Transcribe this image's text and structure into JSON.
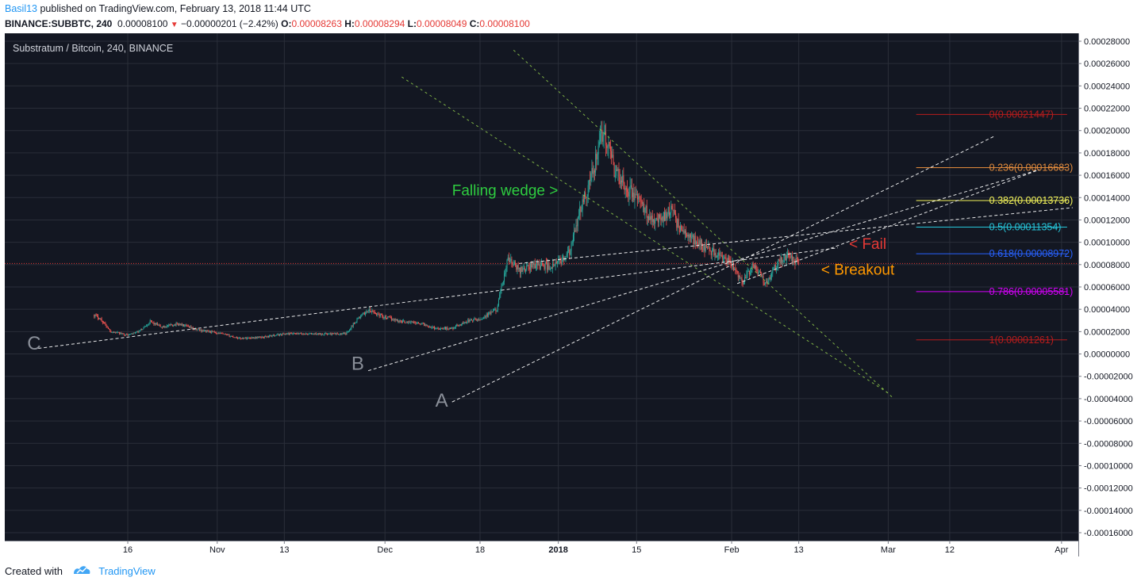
{
  "header": {
    "author": "Basil13",
    "published_text": " published on TradingView.com, February 13, 2018 11:44 UTC",
    "symbol": "BINANCE:SUBBTC, 240",
    "last_price": "0.00008100",
    "change": "−0.00000201 (−2.42%)",
    "o_label": "O:",
    "o_value": "0.00008263",
    "h_label": "H:",
    "h_value": "0.00008294",
    "l_label": "L:",
    "l_value": "0.00008049",
    "c_label": "C:",
    "c_value": "0.00008100"
  },
  "footer": {
    "created_with": "Created with",
    "brand": "TradingView"
  },
  "colors": {
    "chart_bg": "#131722",
    "up_candle": "#26a69a",
    "down_candle": "#ef5350",
    "wedge_line": "#8bc34a",
    "trend_line": "#ffffff",
    "price_line": "#e53935"
  },
  "chart_data": {
    "type": "candlestick",
    "title": "Substratum / Bitcoin, 240, BINANCE",
    "ylim": [
      -0.00016,
      0.00028
    ],
    "y_ticks": [
      "0.00028000",
      "0.00026000",
      "0.00024000",
      "0.00022000",
      "0.00020000",
      "0.00018000",
      "0.00016000",
      "0.00014000",
      "0.00012000",
      "0.00010000",
      "0.00008000",
      "0.00006000",
      "0.00004000",
      "0.00002000",
      "0.00000000",
      "-0.00002000",
      "-0.00004000",
      "-0.00006000",
      "-0.00008000",
      "-0.00010000",
      "-0.00012000",
      "-0.00014000",
      "-0.00016000"
    ],
    "x_ticks": [
      {
        "date": "2017-10-16",
        "label": "16"
      },
      {
        "date": "2017-11-01",
        "label": "Nov"
      },
      {
        "date": "2017-11-13",
        "label": "13"
      },
      {
        "date": "2017-12-01",
        "label": "Dec"
      },
      {
        "date": "2017-12-18",
        "label": "18"
      },
      {
        "date": "2018-01-01",
        "label": "2018"
      },
      {
        "date": "2018-01-15",
        "label": "15"
      },
      {
        "date": "2018-02-01",
        "label": "Feb"
      },
      {
        "date": "2018-02-13",
        "label": "13"
      },
      {
        "date": "2018-03-01",
        "label": "Mar"
      },
      {
        "date": "2018-03-12",
        "label": "12"
      },
      {
        "date": "2018-04-01",
        "label": "Apr"
      }
    ],
    "x_range": [
      "2017-09-24",
      "2018-04-04"
    ],
    "last_price_line": 8.1e-05,
    "price_path": [
      [
        "2017-10-10",
        3.5e-05
      ],
      [
        "2017-10-11",
        3.2e-05
      ],
      [
        "2017-10-13",
        2e-05
      ],
      [
        "2017-10-16",
        1.7e-05
      ],
      [
        "2017-10-18",
        2e-05
      ],
      [
        "2017-10-20",
        2.9e-05
      ],
      [
        "2017-10-22",
        2.4e-05
      ],
      [
        "2017-10-25",
        2.7e-05
      ],
      [
        "2017-10-28",
        2.2e-05
      ],
      [
        "2017-11-01",
        1.9e-05
      ],
      [
        "2017-11-05",
        1.4e-05
      ],
      [
        "2017-11-09",
        1.5e-05
      ],
      [
        "2017-11-13",
        1.8e-05
      ],
      [
        "2017-11-17",
        1.8e-05
      ],
      [
        "2017-11-21",
        1.8e-05
      ],
      [
        "2017-11-24",
        1.8e-05
      ],
      [
        "2017-11-26",
        3.1e-05
      ],
      [
        "2017-11-28",
        3.9e-05
      ],
      [
        "2017-12-01",
        3.3e-05
      ],
      [
        "2017-12-04",
        2.9e-05
      ],
      [
        "2017-12-07",
        2.8e-05
      ],
      [
        "2017-12-10",
        2.3e-05
      ],
      [
        "2017-12-13",
        2.3e-05
      ],
      [
        "2017-12-16",
        3e-05
      ],
      [
        "2017-12-18",
        3.1e-05
      ],
      [
        "2017-12-21",
        4e-05
      ],
      [
        "2017-12-23",
        8.5e-05
      ],
      [
        "2017-12-25",
        7.5e-05
      ],
      [
        "2017-12-28",
        8e-05
      ],
      [
        "2017-12-31",
        7.8e-05
      ],
      [
        "2018-01-03",
        9e-05
      ],
      [
        "2018-01-05",
        0.00013
      ],
      [
        "2018-01-07",
        0.00016
      ],
      [
        "2018-01-09",
        0.0002
      ],
      [
        "2018-01-11",
        0.000165
      ],
      [
        "2018-01-13",
        0.00015
      ],
      [
        "2018-01-15",
        0.00014
      ],
      [
        "2018-01-17",
        0.000125
      ],
      [
        "2018-01-19",
        0.00012
      ],
      [
        "2018-01-21",
        0.00013
      ],
      [
        "2018-01-23",
        0.00011
      ],
      [
        "2018-01-26",
        0.0001
      ],
      [
        "2018-01-29",
        9e-05
      ],
      [
        "2018-02-01",
        8e-05
      ],
      [
        "2018-02-03",
        6.5e-05
      ],
      [
        "2018-02-05",
        8e-05
      ],
      [
        "2018-02-07",
        6.3e-05
      ],
      [
        "2018-02-09",
        8e-05
      ],
      [
        "2018-02-11",
        8.8e-05
      ],
      [
        "2018-02-13",
        8.1e-05
      ]
    ],
    "fibonacci": [
      {
        "ratio": "0",
        "value": "0.00021447",
        "price": 0.00021447,
        "color": "#b71c1c"
      },
      {
        "ratio": "0.236",
        "value": "0.00016683",
        "price": 0.00016683,
        "color": "#e08a3c"
      },
      {
        "ratio": "0.382",
        "value": "0.00013736",
        "price": 0.00013736,
        "color": "#f5f55a"
      },
      {
        "ratio": "0.5",
        "value": "0.00011354",
        "price": 0.00011354,
        "color": "#26c6da"
      },
      {
        "ratio": "0.618",
        "value": "0.00008972",
        "price": 8.972e-05,
        "color": "#2962ff"
      },
      {
        "ratio": "0.786",
        "value": "0.00005581",
        "price": 5.581e-05,
        "color": "#d500f9"
      },
      {
        "ratio": "1",
        "value": "0.00001261",
        "price": 1.261e-05,
        "color": "#b71c1c"
      }
    ],
    "trendlines": [
      {
        "name": "wedge-upper",
        "style": "wedge",
        "p1": [
          "2017-12-24",
          0.000272
        ],
        "p2": [
          "2018-03-02",
          -4e-05
        ]
      },
      {
        "name": "wedge-lower",
        "style": "wedge",
        "p1": [
          "2017-12-04",
          0.000248
        ],
        "p2": [
          "2018-03-01",
          -3.5e-05
        ]
      },
      {
        "name": "line-c",
        "style": "trend",
        "p1": [
          "2017-09-30",
          5e-06
        ],
        "p2": [
          "2018-02-20",
          9.5e-05
        ]
      },
      {
        "name": "line-b",
        "style": "trend",
        "p1": [
          "2017-11-28",
          -1.5e-05
        ],
        "p2": [
          "2018-03-28",
          0.000165
        ]
      },
      {
        "name": "line-a",
        "style": "trend",
        "p1": [
          "2017-12-13",
          -4.3e-05
        ],
        "p2": [
          "2018-03-20",
          0.000195
        ]
      },
      {
        "name": "line-upper",
        "style": "trend",
        "p1": [
          "2017-12-25",
          8.1e-05
        ],
        "p2": [
          "2018-04-03",
          0.000131
        ]
      },
      {
        "name": "line-breakout",
        "style": "trend",
        "p1": [
          "2018-02-02",
          6.3e-05
        ],
        "p2": [
          "2018-03-28",
          0.000165
        ]
      }
    ],
    "annotations": [
      {
        "name": "label-c",
        "text": "C",
        "at": [
          "2017-09-28",
          4e-06
        ],
        "color": "#8a8f99",
        "size": 24
      },
      {
        "name": "label-b",
        "text": "B",
        "at": [
          "2017-11-25",
          -1.4e-05
        ],
        "color": "#8a8f99",
        "size": 24
      },
      {
        "name": "label-a",
        "text": "A",
        "at": [
          "2017-12-10",
          -4.7e-05
        ],
        "color": "#8a8f99",
        "size": 24
      },
      {
        "name": "falling-wedge-label",
        "text": "Falling wedge >",
        "at": [
          "2017-12-13",
          0.000142
        ],
        "color": "#2ecc40",
        "size": 19
      },
      {
        "name": "fail-label",
        "text": "< Fail",
        "at": [
          "2018-02-22",
          9.4e-05
        ],
        "color": "#e53935",
        "size": 19
      },
      {
        "name": "breakout-label",
        "text": "< Breakout",
        "at": [
          "2018-02-17",
          7.1e-05
        ],
        "color": "#ff9800",
        "size": 19
      }
    ]
  }
}
